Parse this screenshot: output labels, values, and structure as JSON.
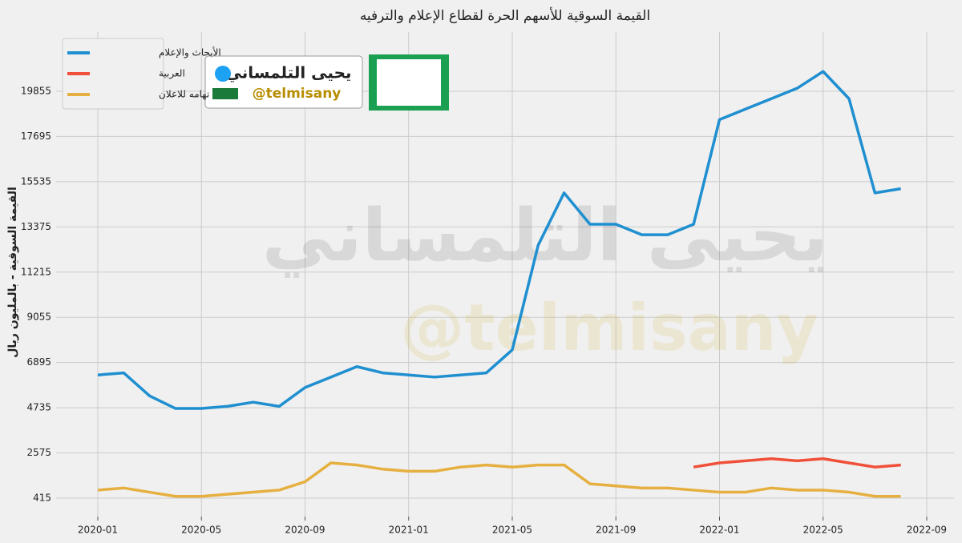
{
  "chart_data": {
    "type": "line",
    "title": "القيمة السوقية للأسهم الحرة لقطاع الإعلام والترفيه",
    "ylabel": "القيمة السوقية - بالمليون ريال",
    "logo": {
      "name": "يحيى التلمساني",
      "handle": "@telmisany"
    },
    "x": [
      "2020-01",
      "2020-02",
      "2020-03",
      "2020-04",
      "2020-05",
      "2020-06",
      "2020-07",
      "2020-08",
      "2020-09",
      "2020-10",
      "2020-11",
      "2020-12",
      "2021-01",
      "2021-02",
      "2021-03",
      "2021-04",
      "2021-05",
      "2021-06",
      "2021-07",
      "2021-08",
      "2021-09",
      "2021-10",
      "2021-11",
      "2021-12",
      "2022-01",
      "2022-02",
      "2022-03",
      "2022-04",
      "2022-05",
      "2022-06",
      "2022-07",
      "2022-08"
    ],
    "series": [
      {
        "name": "الأبحاث والإعلام",
        "color": "#1f8fd0",
        "values": [
          6300,
          6400,
          5300,
          4700,
          4700,
          4800,
          5000,
          4800,
          5700,
          6200,
          6700,
          6400,
          6300,
          6200,
          6300,
          6400,
          7500,
          12500,
          15000,
          13500,
          13500,
          13000,
          13000,
          13500,
          18500,
          19000,
          19500,
          20000,
          20800,
          19500,
          15000,
          15200
        ]
      },
      {
        "name": "العربية",
        "color": "#f0503a",
        "values": [
          null,
          null,
          null,
          null,
          null,
          null,
          null,
          null,
          null,
          null,
          null,
          null,
          null,
          null,
          null,
          null,
          null,
          null,
          null,
          null,
          null,
          null,
          null,
          1900,
          2100,
          2200,
          2300,
          2200,
          2300,
          2100,
          1900,
          2000
        ]
      },
      {
        "name": "تهامه للاعلان",
        "color": "#e6b040",
        "values": [
          800,
          900,
          700,
          500,
          500,
          600,
          700,
          800,
          1200,
          2100,
          2000,
          1800,
          1700,
          1700,
          1900,
          2000,
          1900,
          2000,
          2000,
          1100,
          1000,
          900,
          900,
          800,
          700,
          700,
          900,
          800,
          800,
          700,
          500,
          500
        ]
      }
    ],
    "ylim": [
      -465,
      22685
    ],
    "yticks": [
      415,
      2575,
      4735,
      6895,
      9055,
      11215,
      13375,
      15535,
      17695,
      19855
    ],
    "xticks": [
      "2020-01",
      "2020-05",
      "2020-09",
      "2021-01",
      "2021-05",
      "2021-09",
      "2022-01",
      "2022-05",
      "2022-09"
    ],
    "xlim": [
      "2020-01",
      "2022-09"
    ],
    "grid": true,
    "legend": "upper left"
  }
}
